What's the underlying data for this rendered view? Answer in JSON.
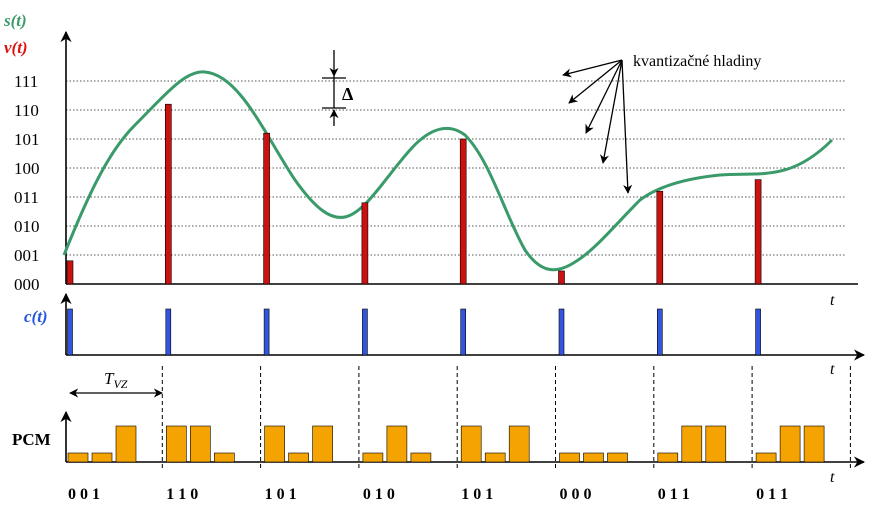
{
  "labels": {
    "s_t": "s(t)",
    "v_t": "v(t)",
    "c_t": "c(t)",
    "pcm": "PCM",
    "t": "t",
    "delta": "Δ",
    "tvz_main": "T",
    "tvz_sub": "VZ",
    "annotation": "kvantizačné hladiny"
  },
  "levels": [
    "000",
    "001",
    "010",
    "011",
    "100",
    "101",
    "110",
    "111"
  ],
  "samples": [
    {
      "level": 0.8,
      "code": "0 0 1",
      "bits": [
        0,
        0,
        1
      ]
    },
    {
      "level": 6.2,
      "code": "1 1 0",
      "bits": [
        1,
        1,
        0
      ]
    },
    {
      "level": 5.2,
      "code": "1 0 1",
      "bits": [
        1,
        0,
        1
      ]
    },
    {
      "level": 2.8,
      "code": "0 1 0",
      "bits": [
        0,
        1,
        0
      ]
    },
    {
      "level": 5.0,
      "code": "1 0 1",
      "bits": [
        1,
        0,
        1
      ]
    },
    {
      "level": 0.45,
      "code": "0 0 0",
      "bits": [
        0,
        0,
        0
      ]
    },
    {
      "level": 3.2,
      "code": "0 1 1",
      "bits": [
        0,
        1,
        1
      ]
    },
    {
      "level": 3.6,
      "code": "0 1 1",
      "bits": [
        0,
        1,
        1
      ]
    }
  ],
  "colors": {
    "signal": "#3a9a6a",
    "pam": "#cc1111",
    "clock": "#3355dd",
    "pcm": "#f5a300",
    "s_label": "#3a9a6a",
    "v_label": "#dd1111",
    "c_label": "#2255dd"
  }
}
